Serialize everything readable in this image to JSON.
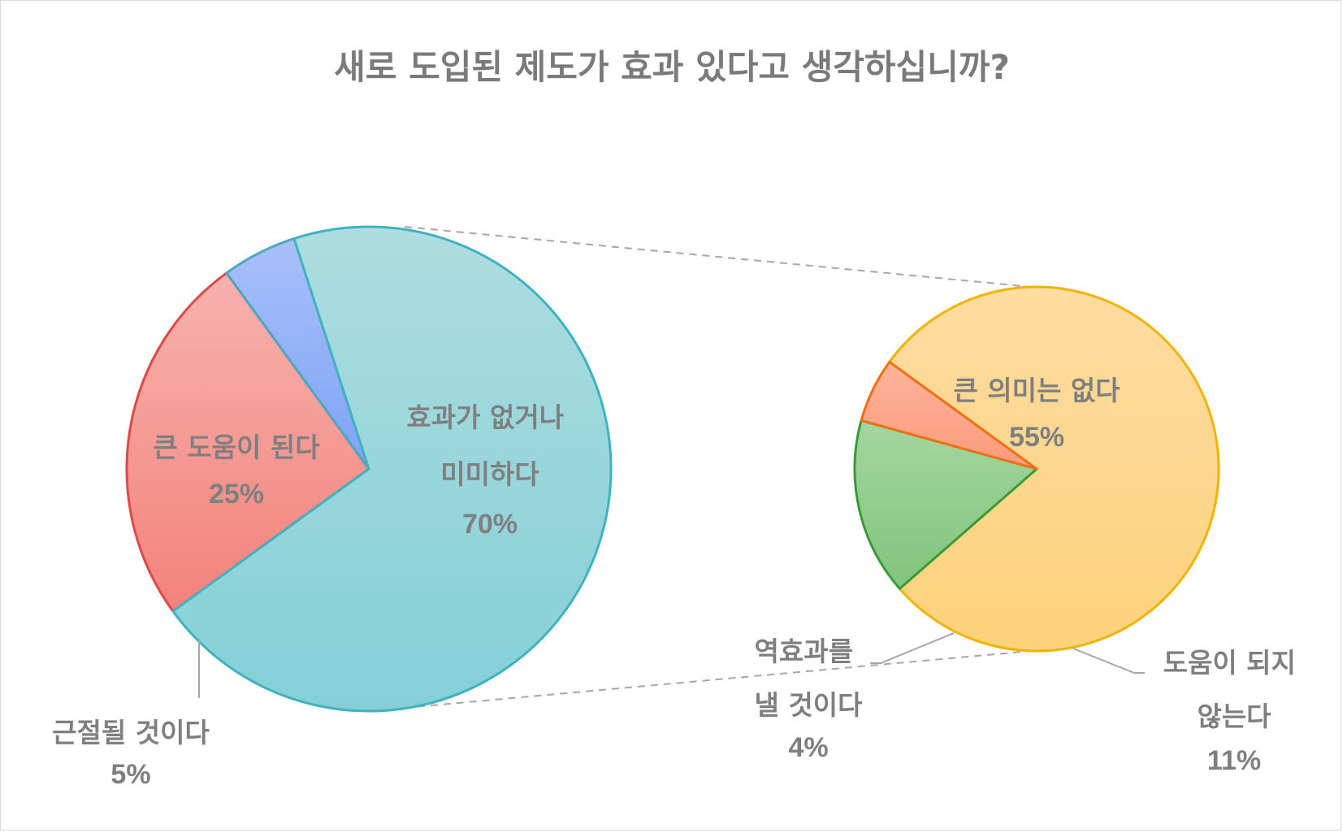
{
  "chart_data": {
    "type": "pie",
    "title": "새로 도입된 제도가 효과 있다고 생각하십니까?",
    "main_pie": {
      "slices": [
        {
          "key": "big_help",
          "label_lines": [
            "큰 도움이 된다"
          ],
          "value": 25,
          "value_label": "25%",
          "color": "#f48a84",
          "stroke": "#e04848"
        },
        {
          "key": "eradicate",
          "label_lines": [
            "근절될 것이다"
          ],
          "value": 5,
          "value_label": "5%",
          "color": "#8aaaf8",
          "stroke": "#4aa8c0"
        },
        {
          "key": "minimal",
          "label_lines": [
            "효과가 없거나",
            "미미하다"
          ],
          "value": 70,
          "value_label": "70%",
          "color": "#92d4da",
          "stroke": "#3fb2c0"
        }
      ]
    },
    "breakdown_pie": {
      "of": "minimal",
      "slices": [
        {
          "key": "no_meaning",
          "label_lines": [
            "큰 의미는 없다"
          ],
          "value": 55,
          "value_label": "55%",
          "color": "#fed27f",
          "stroke": "#f0b400"
        },
        {
          "key": "no_help",
          "label_lines": [
            "도움이 되지",
            "않는다"
          ],
          "value": 11,
          "value_label": "11%",
          "color": "#8ec98a",
          "stroke": "#3a9a3a"
        },
        {
          "key": "adverse",
          "label_lines": [
            "역효과를",
            "낼 것이다"
          ],
          "value": 4,
          "value_label": "4%",
          "color": "#fca488",
          "stroke": "#f07010"
        }
      ]
    },
    "legend": "none"
  }
}
